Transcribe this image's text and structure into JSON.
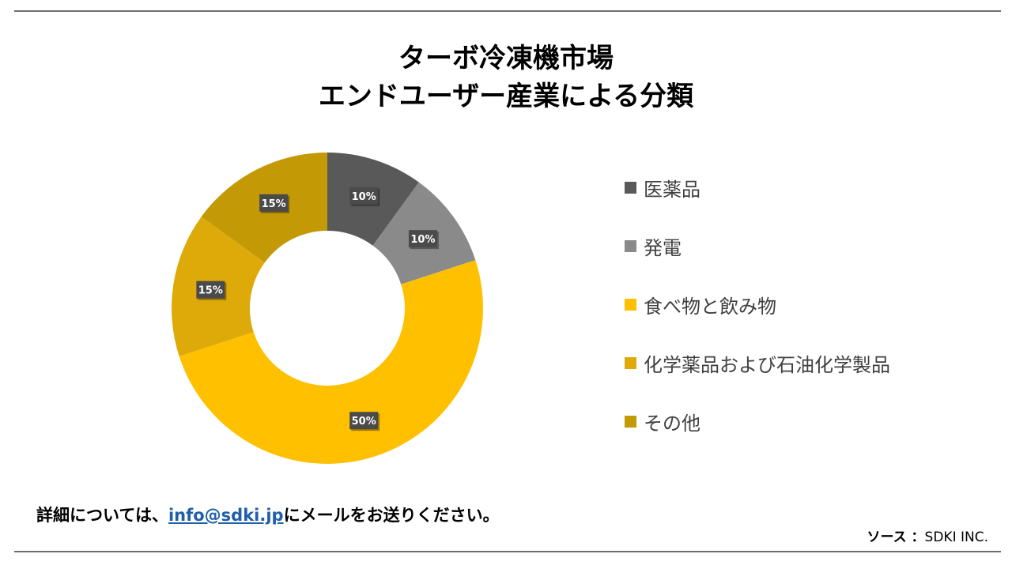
{
  "title_line1": "ターボ冷凍機市場",
  "title_line2": "エンドユーザー産業による分類",
  "chart_data": {
    "type": "pie",
    "donut": true,
    "title": "ターボ冷凍機市場 エンドユーザー産業による分類",
    "legend_position": "right",
    "series": [
      {
        "name": "医薬品",
        "value": 10,
        "label": "10%",
        "color": "#595959"
      },
      {
        "name": "発電",
        "value": 10,
        "label": "10%",
        "color": "#8a8a8a"
      },
      {
        "name": "食べ物と飲み物",
        "value": 50,
        "label": "50%",
        "color": "#ffc000"
      },
      {
        "name": "化学薬品および石油化学製品",
        "value": 15,
        "label": "15%",
        "color": "#deaa0a"
      },
      {
        "name": "その他",
        "value": 15,
        "label": "15%",
        "color": "#c39a06"
      }
    ]
  },
  "footer": {
    "prefix": "詳細については、",
    "email": "info@sdki.jp",
    "suffix": "にメールをお送りください。"
  },
  "source": {
    "label": "ソース ：",
    "value": "SDKI INC."
  }
}
